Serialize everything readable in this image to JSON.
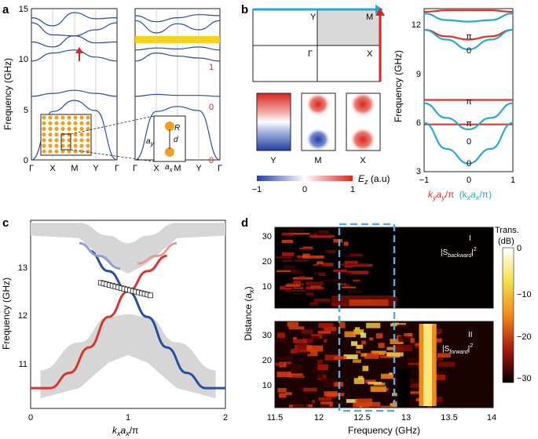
{
  "panels": {
    "a": {
      "label": "a",
      "ylabel": "Frequency (GHz)",
      "ylim": [
        0,
        15
      ],
      "yticks": [
        "0",
        "5",
        "10",
        "15"
      ],
      "left_xticks": [
        "Γ",
        "X",
        "M",
        "Y",
        "Γ"
      ],
      "right_xticks": [
        "Γ",
        "X",
        "M",
        "Y",
        "Γ"
      ],
      "band_numbers": [
        "1",
        "0",
        "0"
      ],
      "inset_labels": {
        "R": "R",
        "d": "d",
        "ay": "a",
        "ay_sub": "y",
        "ax": "a",
        "ax_sub": "x"
      },
      "colors": {
        "band": "#2a4d9c",
        "gap": "#f5d31a",
        "arrow": "#d8261d",
        "dot": "#f0a020",
        "label": "#d8261d"
      }
    },
    "b": {
      "label": "b",
      "bz_labels": {
        "Y": "Y",
        "M": "M",
        "G": "Γ",
        "X": "X"
      },
      "field_labels": [
        "Y",
        "M",
        "X"
      ],
      "colorbar": {
        "ticks": [
          "−1",
          "0",
          "1"
        ],
        "label": "E",
        "label_sub": "z",
        "unit": " (a.u)"
      },
      "right_yticks": [
        "3",
        "6",
        "9",
        "12"
      ],
      "right_ylabel": "Frequency (GHz)",
      "right_xticks": [
        "−1",
        "0",
        "1"
      ],
      "xlabel_red": "k",
      "xlabel_red_sub": "y",
      "xlabel_red_mid": "a",
      "xlabel_red_mid_sub": "y",
      "xlabel_red_end": "/π",
      "xlabel_blue": "(k",
      "xlabel_blue_sub": "x",
      "xlabel_blue_mid": "a",
      "xlabel_blue_mid_sub": "x",
      "xlabel_blue_end": "/π)",
      "mode_labels": [
        "π",
        "0",
        "π",
        "π",
        "0",
        "0"
      ],
      "colors": {
        "red": "#d8352c",
        "blue": "#2aa7cf"
      }
    },
    "c": {
      "label": "c",
      "ylabel": "Frequency (GHz)",
      "yticks": [
        "11",
        "12",
        "13"
      ],
      "xticks": [
        "0",
        "1",
        "2"
      ],
      "xlabel": "k",
      "xlabel_sub": "x",
      "xlabel_mid": "a",
      "xlabel_mid_sub": "x",
      "xlabel_end": "/π",
      "colors": {
        "red": "#d8352c",
        "blue": "#2a4d9c",
        "gray": "#d6d6d6"
      }
    },
    "d": {
      "label": "d",
      "ylabel": "Distance (a",
      "ylabel_sub": "x",
      "ylabel_end": ")",
      "yticks": [
        "10",
        "20",
        "30"
      ],
      "xticks": [
        "11.5",
        "12",
        "12.5",
        "13",
        "13.5",
        "14"
      ],
      "xlabel": "Frequency (GHz)",
      "top_tag": "I",
      "bottom_tag": "II",
      "top_formula": "|S",
      "top_formula_sub": "backward",
      "top_formula_sup": "2",
      "bottom_formula": "|S",
      "bottom_formula_sub": "forward",
      "bottom_formula_sup": "2",
      "colorbar_title": "Trans.",
      "colorbar_unit": "(dB)",
      "colorbar_ticks": [
        "0",
        "−10",
        "−20",
        "−30"
      ]
    }
  },
  "chart_data": [
    {
      "panel": "a-left",
      "type": "line",
      "title": "",
      "xlabel": "",
      "ylabel": "Frequency (GHz)",
      "ylim": [
        0,
        15
      ],
      "categories": [
        "Γ",
        "X",
        "M",
        "Y",
        "Γ"
      ],
      "series": [
        {
          "name": "band1",
          "values": [
            0,
            4.8,
            5.9,
            4.9,
            0
          ]
        },
        {
          "name": "band2",
          "values": [
            6.3,
            6.6,
            6.9,
            6.6,
            6.3
          ]
        },
        {
          "name": "band3",
          "values": [
            9.8,
            10.6,
            10.9,
            10.2,
            9.8
          ]
        },
        {
          "name": "band4",
          "values": [
            11.7,
            11.2,
            12.3,
            11.6,
            11.7
          ]
        },
        {
          "name": "band5",
          "values": [
            13.6,
            12.4,
            12.3,
            12.9,
            13.6
          ]
        },
        {
          "name": "band6",
          "values": [
            14.1,
            13.3,
            14.6,
            14.0,
            14.1
          ]
        }
      ]
    },
    {
      "panel": "a-right",
      "type": "line",
      "ylim": [
        0,
        15
      ],
      "categories": [
        "Γ",
        "X",
        "M",
        "Y",
        "Γ"
      ],
      "gap": [
        11.7,
        12.4
      ],
      "series": [
        {
          "name": "band1",
          "values": [
            0,
            4.8,
            5.3,
            4.9,
            0
          ]
        },
        {
          "name": "band2",
          "values": [
            6.3,
            6.5,
            6.4,
            6.4,
            6.3
          ]
        },
        {
          "name": "band3",
          "values": [
            9.8,
            10.6,
            10.3,
            10.1,
            9.8
          ]
        },
        {
          "name": "band4",
          "values": [
            10.9,
            11.1,
            11.0,
            11.2,
            10.9
          ]
        },
        {
          "name": "band5",
          "values": [
            13.8,
            12.6,
            13.5,
            12.9,
            13.8
          ]
        },
        {
          "name": "band6",
          "values": [
            14.3,
            13.7,
            14.1,
            14.4,
            14.3
          ]
        }
      ]
    },
    {
      "panel": "b-right",
      "type": "line",
      "xlabel": "k_y a_y/π (k_x a_x/π)",
      "ylabel": "Frequency (GHz)",
      "xlim": [
        -1,
        1
      ],
      "ylim": [
        3,
        13
      ],
      "x": [
        -1,
        -0.5,
        0,
        0.5,
        1
      ],
      "series": [
        {
          "name": "red-1",
          "color": "red",
          "values": [
            5.9,
            5.9,
            5.9,
            5.9,
            5.9
          ]
        },
        {
          "name": "red-2",
          "color": "red",
          "values": [
            7.4,
            7.4,
            7.4,
            7.4,
            7.4
          ]
        },
        {
          "name": "red-3",
          "color": "red",
          "values": [
            11.7,
            11.3,
            11.1,
            11.3,
            11.7
          ]
        },
        {
          "name": "red-4",
          "color": "red",
          "values": [
            12.8,
            12.9,
            12.9,
            12.9,
            12.8
          ]
        },
        {
          "name": "blue-1",
          "color": "blue",
          "values": [
            6.0,
            4.4,
            3.5,
            4.4,
            6.0
          ]
        },
        {
          "name": "blue-2",
          "color": "blue",
          "values": [
            7.2,
            6.3,
            5.6,
            6.3,
            7.2
          ]
        },
        {
          "name": "blue-3",
          "color": "blue",
          "values": [
            11.7,
            11.1,
            10.5,
            11.1,
            11.7
          ]
        },
        {
          "name": "blue-4",
          "color": "blue",
          "values": [
            12.7,
            12.3,
            12.2,
            12.3,
            12.7
          ]
        }
      ]
    },
    {
      "panel": "c",
      "type": "line",
      "xlabel": "k_x a_x/π",
      "ylabel": "Frequency (GHz)",
      "xlim": [
        0,
        2
      ],
      "ylim": [
        10.2,
        13.9
      ],
      "x": [
        0,
        0.2,
        0.4,
        0.6,
        0.8,
        1.0,
        1.2,
        1.4,
        1.6,
        1.8,
        2.0
      ],
      "series": [
        {
          "name": "red-edge",
          "color": "red",
          "values": [
            10.6,
            10.6,
            10.9,
            11.4,
            12.0,
            12.5,
            12.9,
            13.2,
            null,
            null,
            null
          ]
        },
        {
          "name": "blue-edge",
          "color": "blue",
          "values": [
            null,
            null,
            null,
            13.3,
            12.9,
            12.5,
            12.0,
            11.4,
            10.9,
            10.6,
            10.6
          ]
        }
      ]
    },
    {
      "panel": "d",
      "type": "heatmap",
      "xlabel": "Frequency (GHz)",
      "ylabel": "Distance (a_x)",
      "xlim": [
        11.5,
        14
      ],
      "ylim": [
        0,
        35
      ],
      "colorbar": [
        -35,
        0
      ],
      "highlight_range_ghz": [
        12.25,
        12.85
      ],
      "panels": [
        "|S_backward|^2",
        "|S_forward|^2"
      ]
    }
  ]
}
